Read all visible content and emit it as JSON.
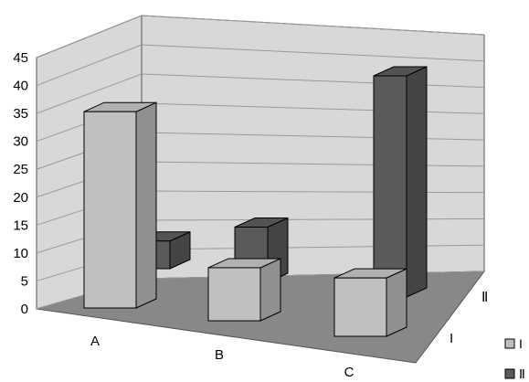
{
  "chart_data": {
    "type": "bar",
    "variant": "3d-column",
    "categories": [
      "A",
      "B",
      "C"
    ],
    "series": [
      {
        "name": "I",
        "values": [
          37,
          10,
          11
        ],
        "color": "#c0c0c0"
      },
      {
        "name": "II",
        "values": [
          5,
          10,
          40
        ],
        "color": "#5a5a5a"
      }
    ],
    "y_ticks": [
      "0",
      "5",
      "10",
      "15",
      "20",
      "25",
      "30",
      "35",
      "40",
      "45"
    ],
    "ylim": [
      0,
      45
    ],
    "depth_labels": [
      "I",
      "Ⅱ"
    ],
    "legend": {
      "position": "bottom-right",
      "items": [
        "I",
        "Ⅱ"
      ]
    },
    "grid": true,
    "colors": {
      "wall": "#d8d8d8",
      "floor": "#888888",
      "grid": "#9a9a9a"
    }
  }
}
